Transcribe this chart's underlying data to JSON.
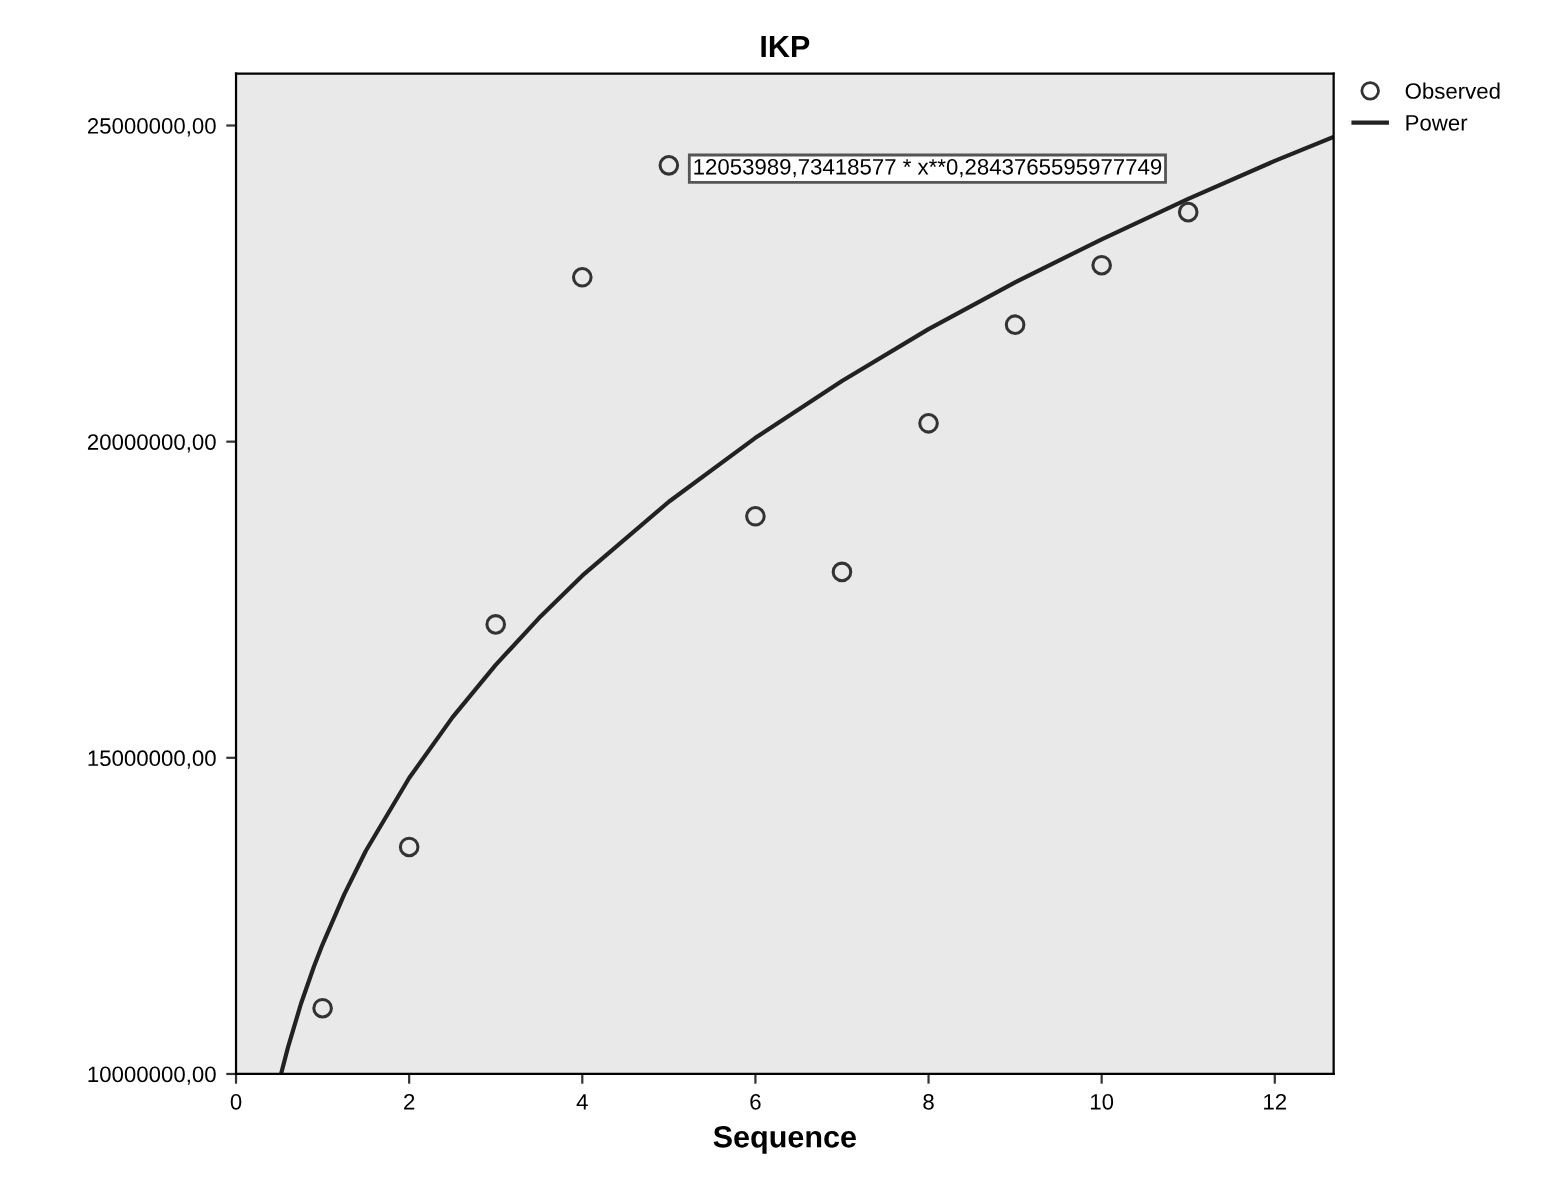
{
  "chart_data": {
    "type": "scatter",
    "title": "IKP",
    "xlabel": "Sequence",
    "xlim": [
      0,
      12.68
    ],
    "xticks": [
      0,
      2,
      4,
      6,
      8,
      10,
      12
    ],
    "ylim": [
      10000000,
      25820000
    ],
    "yticks": [
      {
        "value": 10000000,
        "label": "10000000,00"
      },
      {
        "value": 15000000,
        "label": "15000000,00"
      },
      {
        "value": 20000000,
        "label": "20000000,00"
      },
      {
        "value": 25000000,
        "label": "25000000,00"
      }
    ],
    "grid": false,
    "legend": "top right",
    "series": [
      {
        "name": "Observed",
        "marker": "circle",
        "color": "#333333",
        "x": [
          1,
          2,
          3,
          4,
          5,
          6,
          7,
          8,
          9,
          10,
          11
        ],
        "values": [
          11040000,
          13590000,
          17110000,
          22600000,
          24370000,
          18820000,
          17940000,
          20290000,
          21850000,
          22790000,
          23630000
        ]
      },
      {
        "name": "Power",
        "type": "line",
        "marker": "none",
        "color": "#222222",
        "line_style": "solid",
        "x": [
          0.52,
          0.6,
          0.75,
          0.9,
          1,
          1.25,
          1.5,
          2,
          2.5,
          3,
          3.5,
          4,
          5,
          6,
          7,
          8,
          9,
          10,
          11,
          12,
          12.68
        ],
        "values": [
          10000000,
          10420000,
          11110000,
          11700000,
          12050000,
          12840000,
          13530000,
          14680000,
          15640000,
          16470000,
          17210000,
          17880000,
          19050000,
          20060000,
          20960000,
          21780000,
          22520000,
          23200000,
          23840000,
          24440000,
          24820000
        ]
      }
    ],
    "annotations": [
      "12053989,73418577 * x**0,2843765595977749"
    ]
  }
}
